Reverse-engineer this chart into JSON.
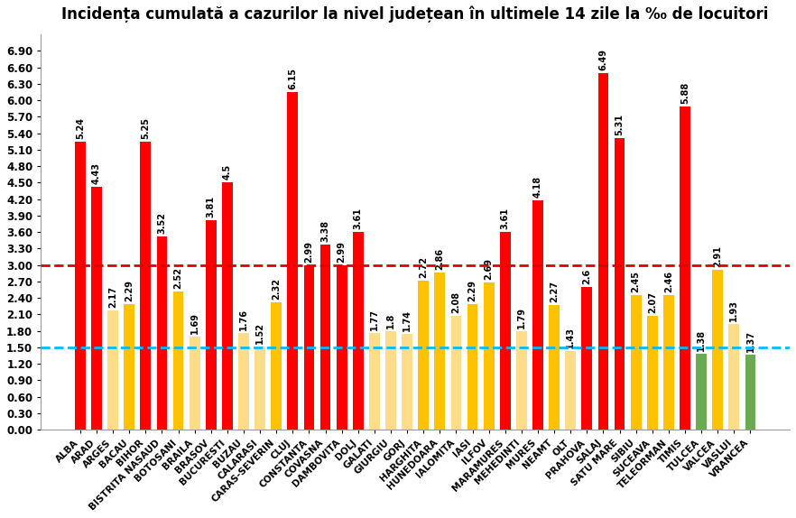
{
  "title": "Incidența cumulată a cazurilor la nivel județean în ultimele 14 zile la ‰ de locuitori",
  "categories": [
    "ALBA",
    "ARAD",
    "ARGES",
    "BACAU",
    "BIHOR",
    "BISTRITA NASAUD",
    "BOTOSANI",
    "BRAILA",
    "BRASOV",
    "BUCURESTI",
    "BUZAU",
    "CALARASI",
    "CARAS-SEVERIN",
    "CLUJ",
    "CONSTANTA",
    "COVASNA",
    "DAMBOVITA",
    "DOLJ",
    "GALATI",
    "GIURGIU",
    "GORJ",
    "HARGHITA",
    "HUNEDOARA",
    "IALOMITA",
    "IASI",
    "ILFOV",
    "MARAMURES",
    "MEHEDINTI",
    "MURES",
    "NEAMT",
    "OLT",
    "PRAHOVA",
    "SALAJ",
    "SATU MARE",
    "SIBIU",
    "SUCEAVA",
    "TELEORMAN",
    "TIMIS",
    "TULCEA",
    "VALCEA",
    "VASLUI",
    "VRANCEA"
  ],
  "values": [
    5.24,
    4.43,
    2.17,
    2.29,
    5.25,
    3.52,
    2.52,
    1.69,
    3.81,
    4.5,
    1.76,
    1.52,
    2.32,
    6.15,
    2.99,
    3.38,
    2.99,
    3.61,
    1.77,
    1.8,
    1.74,
    2.72,
    2.86,
    2.08,
    2.29,
    2.69,
    3.61,
    1.79,
    4.18,
    2.27,
    1.43,
    2.6,
    6.49,
    5.31,
    2.45,
    2.07,
    2.46,
    5.88,
    1.38,
    2.91,
    1.93,
    1.37
  ],
  "labels": [
    "5.24",
    "4.43",
    "2.17",
    "2.29",
    "5.25",
    "3.52",
    "2.52",
    "1.69",
    "3.81",
    "4.5",
    "1.76",
    "1.52",
    "2.32",
    "6.15",
    "2.99",
    "3.38",
    "2.99",
    "3.61",
    "1.77",
    "1.8",
    "1.74",
    "2.72",
    "2.86",
    "2.08",
    "2.29",
    "2.69",
    "3.61",
    "1.79",
    "4.18",
    "2.27",
    "1.43",
    "2.6",
    "6.49",
    "5.31",
    "2.45",
    "2.07",
    "2.46",
    "5.88",
    "1.38",
    "2.91",
    "1.93",
    "1.37"
  ],
  "colors": [
    "red",
    "red",
    "yellow_light",
    "yellow",
    "red",
    "red",
    "yellow",
    "yellow_light",
    "red",
    "red",
    "yellow_light",
    "yellow_light",
    "yellow",
    "red",
    "red",
    "red",
    "red",
    "red",
    "yellow_light",
    "yellow_light",
    "yellow_light",
    "yellow",
    "yellow",
    "yellow_light",
    "yellow",
    "yellow",
    "red",
    "yellow_light",
    "red",
    "yellow",
    "yellow_light",
    "red",
    "red",
    "red",
    "yellow",
    "yellow",
    "yellow",
    "red",
    "green",
    "yellow",
    "yellow_light",
    "green"
  ],
  "red_line": 3.0,
  "blue_line": 1.5,
  "ylim": [
    0.0,
    7.2
  ],
  "yticks": [
    0.0,
    0.3,
    0.6,
    0.9,
    1.2,
    1.5,
    1.8,
    2.1,
    2.4,
    2.7,
    3.0,
    3.3,
    3.6,
    3.9,
    4.2,
    4.5,
    4.8,
    5.1,
    5.4,
    5.7,
    6.0,
    6.3,
    6.6,
    6.9
  ],
  "ytick_labels": [
    "0.00",
    "0.30",
    "0.60",
    "0.90",
    "1.20",
    "1.50",
    "1.80",
    "2.10",
    "2.40",
    "2.70",
    "3.00",
    "3.30",
    "3.60",
    "3.90",
    "4.20",
    "4.50",
    "4.80",
    "5.10",
    "5.40",
    "5.70",
    "6.00",
    "6.30",
    "6.60",
    "6.90"
  ],
  "bar_width": 0.65,
  "background_color": "#ffffff",
  "title_fontsize": 12,
  "label_fontsize": 7,
  "tick_fontsize": 8.5,
  "xlabel_fontsize": 7.5,
  "red_color": "#ff0000",
  "yellow_color": "#ffc200",
  "yellow_light_color": "#ffdd88",
  "green_color": "#6aaa50",
  "red_line_color": "#dd0000",
  "blue_line_color": "#00bbff"
}
